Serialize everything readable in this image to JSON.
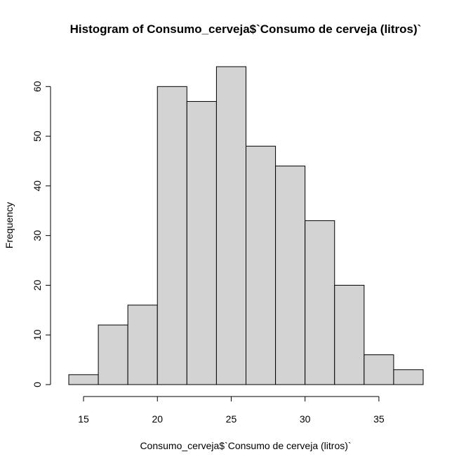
{
  "chart_data": {
    "type": "bar",
    "title": "Histogram of Consumo_cerveja$`Consumo de cerveja (litros)`",
    "xlabel": "Consumo_cerveja$`Consumo de cerveja (litros)`",
    "ylabel": "Frequency",
    "bin_edges": [
      14,
      16,
      18,
      20,
      22,
      24,
      26,
      28,
      30,
      32,
      34,
      36,
      38
    ],
    "values": [
      2,
      12,
      16,
      60,
      57,
      64,
      48,
      44,
      33,
      20,
      6,
      3
    ],
    "xlim": [
      14,
      38
    ],
    "ylim": [
      0,
      64
    ],
    "x_ticks": [
      15,
      20,
      25,
      30,
      35
    ],
    "y_ticks": [
      0,
      10,
      20,
      30,
      40,
      50,
      60
    ],
    "grid": false,
    "bar_color": "#d3d3d3",
    "edge_color": "#000000"
  }
}
